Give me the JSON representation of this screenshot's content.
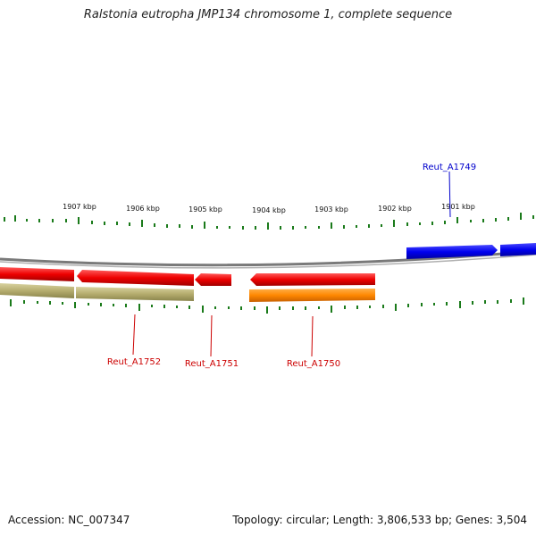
{
  "header": {
    "title": "Ralstonia eutropha JMP134 chromosome 1, complete sequence"
  },
  "footer": {
    "accession": "Accession: NC_007347",
    "summary": "Topology: circular; Length: 3,806,533 bp; Genes: 3,504"
  },
  "scale": {
    "labels": [
      "1907 kbp",
      "1906 kbp",
      "1905 kbp",
      "1904 kbp",
      "1903 kbp",
      "1902 kbp",
      "1901 kbp"
    ]
  },
  "genes": [
    {
      "name": "Reut_A1749",
      "color": "#0000cc"
    },
    {
      "name": "Reut_A1752",
      "color": "#cc0000"
    },
    {
      "name": "Reut_A1751",
      "color": "#cc0000"
    },
    {
      "name": "Reut_A1750",
      "color": "#cc0000"
    }
  ],
  "colors": {
    "backbone": "#808080",
    "tick": "#1a7a1a",
    "gene_blue": "#0000ee",
    "gene_red": "#ee0000",
    "gene_orange": "#ff8800",
    "gene_olive": "#b5ad6e"
  }
}
